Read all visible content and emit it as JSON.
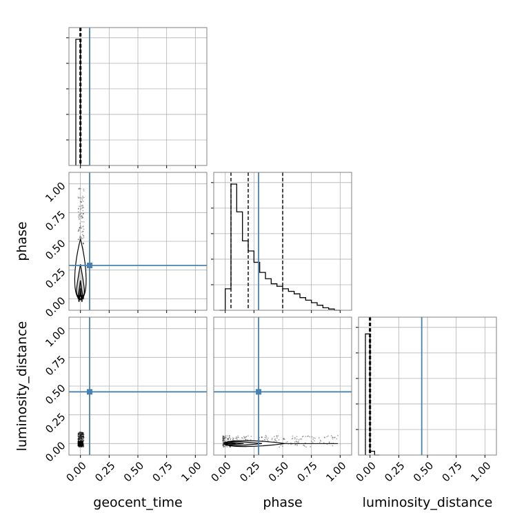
{
  "chart_data": {
    "type": "corner",
    "parameters": [
      "geocent_time",
      "phase",
      "luminosity_distance"
    ],
    "axis_labels": {
      "x": [
        "geocent_time",
        "phase",
        "luminosity_distance"
      ],
      "y": [
        "",
        "phase",
        "luminosity_distance"
      ]
    },
    "tick_values": [
      0.0,
      0.25,
      0.5,
      0.75,
      1.0
    ],
    "tick_labels": [
      "0.00",
      "0.25",
      "0.50",
      "0.75",
      "1.00"
    ],
    "axis_range": [
      -0.1,
      1.1
    ],
    "grid": true,
    "truth_color": "#4682b4",
    "truths": {
      "geocent_time": 0.08,
      "phase": 0.29,
      "luminosity_distance": 0.45
    },
    "histograms": {
      "geocent_time": {
        "bin_edges": [
          -0.04,
          0.0,
          0.04,
          0.08
        ],
        "counts": [
          1.0,
          0.0,
          0.0
        ],
        "quantiles": [
          -0.005,
          0.0,
          0.005
        ]
      },
      "phase": {
        "bin_edges": [
          -0.05,
          0.0,
          0.05,
          0.1,
          0.15,
          0.2,
          0.25,
          0.3,
          0.35,
          0.4,
          0.45,
          0.5,
          0.55,
          0.6,
          0.65,
          0.7,
          0.75,
          0.8,
          0.85,
          0.9,
          0.95,
          1.0
        ],
        "counts": [
          0.0,
          0.17,
          1.0,
          0.78,
          0.55,
          0.47,
          0.38,
          0.3,
          0.25,
          0.21,
          0.19,
          0.17,
          0.15,
          0.13,
          0.1,
          0.08,
          0.06,
          0.04,
          0.02,
          0.01,
          0.0
        ],
        "quantiles": [
          0.05,
          0.2,
          0.5
        ]
      },
      "luminosity_distance": {
        "bin_edges": [
          -0.04,
          0.0,
          0.04,
          0.08
        ],
        "counts": [
          0.96,
          0.03,
          0.0
        ],
        "quantiles": [
          -0.005,
          0.0,
          0.005
        ]
      }
    },
    "contours": {
      "phase_vs_geocent_time": {
        "x_range": [
          -0.02,
          0.03
        ],
        "y_range": [
          0.0,
          0.97
        ],
        "peak": [
          0.0,
          0.05
        ]
      },
      "luminosity_distance_vs_geocent_time": {
        "x_range": [
          -0.02,
          0.03
        ],
        "y_range": [
          -0.03,
          0.1
        ],
        "peak": [
          0.0,
          0.0
        ]
      },
      "luminosity_distance_vs_phase": {
        "x_range": [
          -0.02,
          0.98
        ],
        "y_range": [
          -0.03,
          0.07
        ],
        "peak": [
          0.05,
          0.0
        ]
      }
    }
  }
}
